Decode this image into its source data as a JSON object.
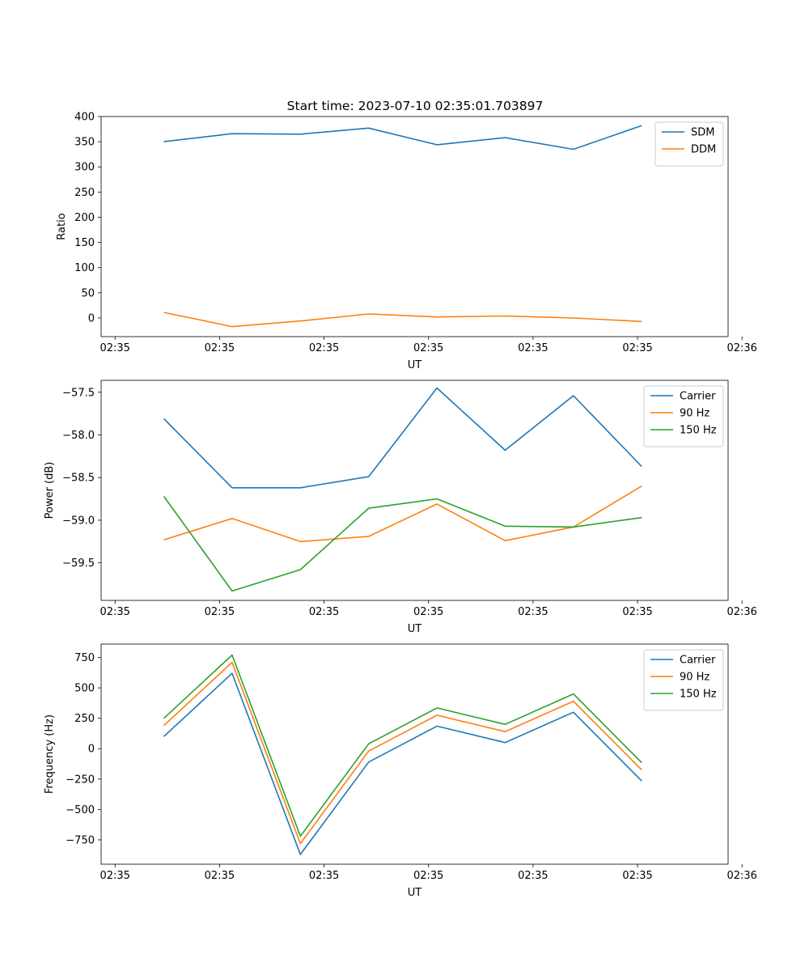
{
  "figure_title": "Start time: 2023-07-10 02:35:01.703897",
  "colors": {
    "blue": "#1f77b4",
    "orange": "#ff7f0e",
    "green": "#2ca02c"
  },
  "chart_data": [
    {
      "type": "line",
      "title": "Start time: 2023-07-10 02:35:01.703897",
      "xlabel": "UT",
      "ylabel": "Ratio",
      "xlim": [
        -0.4,
        8.6
      ],
      "ylim": [
        -37,
        400
      ],
      "xticks": [
        -0.2,
        1.3,
        2.8,
        4.3,
        5.8,
        7.3,
        8.8
      ],
      "xtick_labels": [
        "02:35",
        "02:35",
        "02:35",
        "02:35",
        "02:35",
        "02:35",
        "02:36"
      ],
      "yticks": [
        0,
        50,
        100,
        150,
        200,
        250,
        300,
        350,
        400
      ],
      "ytick_labels": [
        "0",
        "50",
        "100",
        "150",
        "200",
        "250",
        "300",
        "350",
        "400"
      ],
      "legend_position": "top-right",
      "x": [
        0.5,
        1.48,
        2.46,
        3.44,
        4.42,
        5.4,
        6.38,
        7.36
      ],
      "series": [
        {
          "name": "SDM",
          "color": "#1f77b4",
          "values": [
            350,
            366,
            365,
            377,
            344,
            358,
            335,
            382
          ]
        },
        {
          "name": "DDM",
          "color": "#ff7f0e",
          "values": [
            11,
            -17,
            -6,
            8,
            2,
            4,
            0,
            -7
          ]
        }
      ]
    },
    {
      "type": "line",
      "title": "",
      "xlabel": "UT",
      "ylabel": "Power (dB)",
      "xlim": [
        -0.4,
        8.6
      ],
      "ylim": [
        -59.94,
        -57.36
      ],
      "xticks": [
        -0.2,
        1.3,
        2.8,
        4.3,
        5.8,
        7.3,
        8.8
      ],
      "xtick_labels": [
        "02:35",
        "02:35",
        "02:35",
        "02:35",
        "02:35",
        "02:35",
        "02:36"
      ],
      "yticks": [
        -59.5,
        -59.0,
        -58.5,
        -58.0,
        -57.5
      ],
      "ytick_labels": [
        "−59.5",
        "−59.0",
        "−58.5",
        "−58.0",
        "−57.5"
      ],
      "legend_position": "top-right",
      "x": [
        0.5,
        1.48,
        2.46,
        3.44,
        4.42,
        5.4,
        6.38,
        7.36
      ],
      "series": [
        {
          "name": "Carrier",
          "color": "#1f77b4",
          "values": [
            -57.81,
            -58.62,
            -58.62,
            -58.49,
            -57.45,
            -58.18,
            -57.54,
            -58.37
          ]
        },
        {
          "name": "90 Hz",
          "color": "#ff7f0e",
          "values": [
            -59.23,
            -58.98,
            -59.25,
            -59.19,
            -58.81,
            -59.24,
            -59.08,
            -58.6
          ]
        },
        {
          "name": "150 Hz",
          "color": "#2ca02c",
          "values": [
            -58.72,
            -59.83,
            -59.58,
            -58.86,
            -58.75,
            -59.07,
            -59.08,
            -58.97
          ]
        }
      ]
    },
    {
      "type": "line",
      "title": "",
      "xlabel": "UT",
      "ylabel": "Frequency (Hz)",
      "xlim": [
        -0.4,
        8.6
      ],
      "ylim": [
        -950,
        860
      ],
      "xticks": [
        -0.2,
        1.3,
        2.8,
        4.3,
        5.8,
        7.3,
        8.8
      ],
      "xtick_labels": [
        "02:35",
        "02:35",
        "02:35",
        "02:35",
        "02:35",
        "02:35",
        "02:36"
      ],
      "yticks": [
        -750,
        -500,
        -250,
        0,
        250,
        500,
        750
      ],
      "ytick_labels": [
        "−750",
        "−500",
        "−250",
        "0",
        "250",
        "500",
        "750"
      ],
      "legend_position": "top-right",
      "x": [
        0.5,
        1.48,
        2.46,
        3.44,
        4.42,
        5.4,
        6.38,
        7.36
      ],
      "series": [
        {
          "name": "Carrier",
          "color": "#1f77b4",
          "values": [
            100,
            620,
            -870,
            -110,
            185,
            50,
            300,
            -265
          ]
        },
        {
          "name": "90 Hz",
          "color": "#ff7f0e",
          "values": [
            190,
            710,
            -780,
            -20,
            275,
            140,
            390,
            -175
          ]
        },
        {
          "name": "150 Hz",
          "color": "#2ca02c",
          "values": [
            250,
            770,
            -720,
            40,
            335,
            200,
            450,
            -115
          ]
        }
      ]
    }
  ]
}
